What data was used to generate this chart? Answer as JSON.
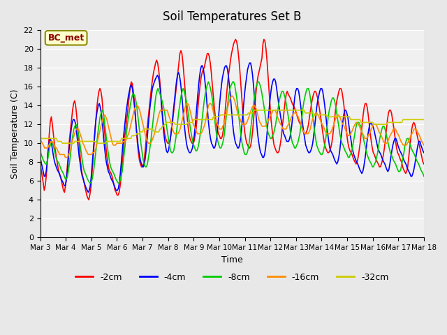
{
  "title": "Soil Temperatures Set B",
  "xlabel": "Time",
  "ylabel": "Soil Temperature (C)",
  "ylim": [
    0,
    22
  ],
  "yticks": [
    0,
    2,
    4,
    6,
    8,
    10,
    12,
    14,
    16,
    18,
    20,
    22
  ],
  "annotation": "BC_met",
  "annotation_color": "#8B0000",
  "annotation_bg": "#FFFFCC",
  "background_color": "#E8E8E8",
  "plot_bg": "#F0F0F0",
  "legend_entries": [
    "-2cm",
    "-4cm",
    "-8cm",
    "-16cm",
    "-32cm"
  ],
  "line_colors": [
    "#FF0000",
    "#0000FF",
    "#00CC00",
    "#FF8C00",
    "#CCCC00"
  ],
  "x_labels": [
    "Mar 3",
    "Mar 4",
    "Mar 5",
    "Mar 6",
    "Mar 7",
    "Mar 8",
    "Mar 9",
    "Mar 10",
    "Mar 11",
    "Mar 12",
    "Mar 13",
    "Mar 14",
    "Mar 15",
    "Mar 16",
    "Mar 17",
    "Mar 18"
  ],
  "data_2cm": [
    7.8,
    7.2,
    6.5,
    5.8,
    5.0,
    5.5,
    6.5,
    8.0,
    9.5,
    11.0,
    12.3,
    12.8,
    12.0,
    11.0,
    10.0,
    9.2,
    8.5,
    7.8,
    7.2,
    6.8,
    6.5,
    6.0,
    5.5,
    5.0,
    4.8,
    5.5,
    6.5,
    7.8,
    9.2,
    10.5,
    11.5,
    12.5,
    13.5,
    14.2,
    14.5,
    14.0,
    13.0,
    11.8,
    10.5,
    9.2,
    8.0,
    7.0,
    6.5,
    6.0,
    5.5,
    5.0,
    4.5,
    4.2,
    4.0,
    4.5,
    5.2,
    6.5,
    8.0,
    9.5,
    11.0,
    12.5,
    13.8,
    14.8,
    15.5,
    15.8,
    15.5,
    14.8,
    13.5,
    12.0,
    10.8,
    9.5,
    8.5,
    7.8,
    7.2,
    7.0,
    6.8,
    6.5,
    6.0,
    5.5,
    5.0,
    4.8,
    4.5,
    4.5,
    4.8,
    5.5,
    6.5,
    7.8,
    9.0,
    10.2,
    11.2,
    12.0,
    13.0,
    14.0,
    15.0,
    16.0,
    16.5,
    16.3,
    15.5,
    14.5,
    13.0,
    11.5,
    10.0,
    9.0,
    8.2,
    7.8,
    7.5,
    7.5,
    7.8,
    8.5,
    9.5,
    10.8,
    12.0,
    13.0,
    14.0,
    15.0,
    16.0,
    16.8,
    17.5,
    18.0,
    18.5,
    18.8,
    18.5,
    17.8,
    16.8,
    15.5,
    14.0,
    12.8,
    11.8,
    11.0,
    10.5,
    10.2,
    10.0,
    10.0,
    10.2,
    10.8,
    11.5,
    12.5,
    13.5,
    14.5,
    15.5,
    16.5,
    17.5,
    18.5,
    19.5,
    19.8,
    19.5,
    18.5,
    17.2,
    15.8,
    14.2,
    13.0,
    11.8,
    11.0,
    10.5,
    10.2,
    10.0,
    10.0,
    10.2,
    10.8,
    11.5,
    12.8,
    14.0,
    15.2,
    16.2,
    17.0,
    17.5,
    17.8,
    18.0,
    18.5,
    19.0,
    19.5,
    19.5,
    19.2,
    18.5,
    17.5,
    16.2,
    15.0,
    13.8,
    12.8,
    12.0,
    11.5,
    11.0,
    10.8,
    10.5,
    10.5,
    10.8,
    11.5,
    12.5,
    13.8,
    15.0,
    16.2,
    17.2,
    18.0,
    18.8,
    19.5,
    20.0,
    20.5,
    20.8,
    21.0,
    20.8,
    20.2,
    19.2,
    18.0,
    16.5,
    15.0,
    13.5,
    12.2,
    11.2,
    10.5,
    10.0,
    9.8,
    9.5,
    9.5,
    9.8,
    10.5,
    11.5,
    12.8,
    14.0,
    15.2,
    16.2,
    17.0,
    17.5,
    18.0,
    18.5,
    19.0,
    20.5,
    21.0,
    20.8,
    20.0,
    18.8,
    17.2,
    15.5,
    14.0,
    12.5,
    11.5,
    10.5,
    9.8,
    9.5,
    9.2,
    9.0,
    9.0,
    9.2,
    9.8,
    10.5,
    11.5,
    12.5,
    13.5,
    14.5,
    15.2,
    15.5,
    15.2,
    15.0,
    14.8,
    14.5,
    14.2,
    14.0,
    13.8,
    13.5,
    13.2,
    12.8,
    12.5,
    12.2,
    12.0,
    11.8,
    11.5,
    11.2,
    11.0,
    11.0,
    11.2,
    11.5,
    12.0,
    12.8,
    13.5,
    14.2,
    14.8,
    15.2,
    15.5,
    15.5,
    15.2,
    14.8,
    14.2,
    13.5,
    12.8,
    12.0,
    11.2,
    10.5,
    9.8,
    9.5,
    9.2,
    9.0,
    9.0,
    9.2,
    9.5,
    10.0,
    10.8,
    11.8,
    12.8,
    13.8,
    14.5,
    15.0,
    15.5,
    15.8,
    15.8,
    15.5,
    14.8,
    14.0,
    12.8,
    11.8,
    10.8,
    10.0,
    9.5,
    9.2,
    9.0,
    8.8,
    8.5,
    8.2,
    8.0,
    7.8,
    8.0,
    8.5,
    9.2,
    10.0,
    11.0,
    12.0,
    13.0,
    13.8,
    14.2,
    14.2,
    13.8,
    13.0,
    12.0,
    11.0,
    10.2,
    9.5,
    9.0,
    8.8,
    8.5,
    8.2,
    8.0,
    7.8,
    7.5,
    7.5,
    7.8,
    8.2,
    8.8,
    9.5,
    10.5,
    11.5,
    12.5,
    13.2,
    13.5,
    13.5,
    13.2,
    12.5,
    11.8,
    11.0,
    10.2,
    9.5,
    9.0,
    8.8,
    8.5,
    8.2,
    8.0,
    7.5,
    7.2,
    7.0,
    6.8,
    7.0,
    7.5,
    8.5,
    9.5,
    10.5,
    11.5,
    12.0,
    12.2,
    12.0,
    11.5,
    11.0,
    10.5,
    10.0,
    9.5,
    9.0,
    8.5,
    8.0,
    7.8
  ],
  "data_4cm": [
    8.5,
    8.0,
    7.5,
    7.0,
    6.5,
    6.5,
    7.0,
    8.0,
    9.2,
    10.2,
    10.5,
    10.2,
    9.5,
    8.8,
    8.2,
    7.8,
    7.5,
    7.2,
    7.0,
    6.8,
    6.5,
    6.2,
    6.0,
    5.8,
    5.5,
    5.5,
    6.0,
    7.0,
    8.2,
    9.5,
    10.5,
    11.5,
    12.2,
    12.5,
    12.5,
    12.2,
    11.5,
    10.5,
    9.5,
    8.5,
    7.8,
    7.0,
    6.5,
    6.2,
    5.8,
    5.5,
    5.2,
    5.0,
    4.8,
    5.0,
    5.5,
    6.5,
    7.8,
    9.2,
    10.5,
    11.8,
    12.8,
    13.5,
    14.0,
    14.2,
    13.8,
    13.2,
    12.2,
    11.0,
    9.8,
    8.8,
    8.0,
    7.5,
    7.0,
    6.8,
    6.5,
    6.2,
    6.0,
    5.8,
    5.5,
    5.2,
    5.0,
    5.0,
    5.2,
    5.8,
    6.8,
    8.0,
    9.2,
    10.5,
    11.5,
    12.5,
    13.5,
    14.2,
    15.0,
    15.5,
    16.0,
    16.2,
    15.8,
    15.0,
    14.0,
    12.8,
    11.5,
    10.5,
    9.5,
    8.8,
    8.2,
    7.8,
    7.5,
    7.5,
    7.8,
    8.5,
    9.5,
    10.8,
    12.0,
    13.2,
    14.2,
    15.0,
    15.8,
    16.2,
    16.5,
    16.8,
    17.0,
    17.2,
    17.0,
    16.5,
    15.5,
    14.2,
    12.8,
    11.5,
    10.5,
    9.8,
    9.2,
    9.0,
    9.2,
    9.8,
    10.5,
    11.5,
    12.5,
    13.5,
    14.5,
    15.5,
    16.5,
    17.2,
    17.5,
    17.2,
    16.5,
    15.5,
    14.2,
    13.0,
    11.8,
    10.8,
    10.0,
    9.5,
    9.2,
    9.0,
    9.0,
    9.2,
    9.5,
    10.2,
    11.0,
    12.2,
    13.5,
    14.8,
    16.0,
    17.0,
    17.8,
    18.2,
    18.2,
    17.8,
    17.0,
    16.0,
    14.8,
    13.5,
    12.2,
    11.2,
    10.5,
    10.0,
    9.8,
    9.5,
    9.5,
    9.8,
    10.5,
    11.5,
    12.8,
    14.0,
    15.2,
    16.2,
    17.0,
    17.5,
    18.0,
    18.2,
    18.2,
    17.8,
    17.0,
    16.0,
    14.8,
    13.5,
    12.2,
    11.2,
    10.5,
    10.0,
    9.8,
    9.5,
    9.5,
    9.8,
    10.5,
    11.5,
    12.8,
    14.0,
    15.2,
    16.2,
    17.0,
    17.8,
    18.2,
    18.5,
    18.5,
    18.0,
    17.2,
    16.0,
    14.8,
    13.5,
    12.2,
    11.0,
    10.2,
    9.5,
    9.0,
    8.8,
    8.5,
    8.5,
    8.8,
    9.5,
    10.5,
    11.8,
    13.0,
    14.2,
    15.2,
    16.0,
    16.5,
    16.8,
    16.8,
    16.5,
    15.8,
    15.0,
    14.2,
    13.5,
    12.8,
    12.2,
    11.5,
    11.0,
    10.8,
    10.5,
    10.2,
    10.2,
    10.2,
    10.5,
    11.0,
    11.8,
    12.8,
    13.8,
    14.8,
    15.5,
    15.8,
    15.8,
    15.5,
    14.8,
    14.0,
    13.0,
    12.0,
    11.2,
    10.5,
    9.8,
    9.5,
    9.2,
    9.0,
    9.0,
    9.2,
    9.5,
    10.0,
    10.8,
    11.8,
    12.8,
    13.8,
    14.5,
    15.0,
    15.5,
    15.8,
    15.8,
    15.5,
    14.8,
    14.0,
    13.0,
    12.0,
    11.0,
    10.2,
    9.5,
    9.2,
    9.0,
    8.8,
    8.5,
    8.2,
    8.0,
    7.8,
    8.0,
    8.5,
    9.2,
    10.2,
    11.2,
    12.2,
    13.0,
    13.5,
    13.5,
    13.2,
    12.8,
    12.0,
    11.2,
    10.5,
    9.8,
    9.2,
    8.8,
    8.5,
    8.2,
    8.0,
    7.8,
    7.5,
    7.2,
    7.0,
    6.8,
    7.0,
    7.5,
    8.2,
    9.0,
    10.0,
    10.8,
    11.5,
    12.0,
    12.2,
    12.0,
    11.8,
    11.5,
    11.0,
    10.5,
    10.0,
    9.5,
    9.2,
    9.0,
    8.8,
    8.5,
    8.2,
    8.0,
    7.8,
    7.5,
    7.2,
    7.0,
    7.2,
    7.8,
    8.5,
    9.2,
    9.8,
    10.2,
    10.5,
    10.5,
    10.2,
    9.8,
    9.5,
    9.2,
    9.0,
    8.8,
    8.5,
    8.2,
    8.0,
    7.8,
    7.5,
    7.2,
    7.0,
    6.8,
    6.5,
    6.5,
    6.8,
    7.2,
    7.8,
    8.5,
    9.2,
    9.8,
    10.2,
    10.2,
    9.8,
    9.5,
    9.2,
    9.0
  ],
  "data_8cm": [
    9.2,
    8.8,
    8.5,
    8.2,
    8.0,
    7.8,
    7.8,
    8.2,
    8.8,
    9.5,
    10.0,
    10.2,
    10.0,
    9.5,
    9.0,
    8.5,
    8.2,
    8.0,
    7.8,
    7.5,
    7.2,
    7.0,
    6.8,
    6.5,
    6.2,
    6.2,
    6.5,
    7.2,
    8.0,
    9.0,
    10.0,
    10.8,
    11.5,
    11.8,
    12.0,
    11.8,
    11.2,
    10.5,
    9.8,
    9.0,
    8.2,
    7.5,
    7.0,
    6.8,
    6.5,
    6.2,
    6.0,
    5.8,
    5.8,
    6.0,
    6.5,
    7.2,
    8.2,
    9.2,
    10.2,
    11.2,
    12.0,
    12.8,
    13.2,
    13.5,
    13.2,
    12.5,
    11.5,
    10.5,
    9.5,
    8.8,
    8.0,
    7.5,
    7.2,
    7.0,
    6.8,
    6.5,
    6.2,
    6.0,
    5.8,
    5.8,
    6.0,
    6.5,
    7.0,
    8.0,
    9.0,
    10.0,
    11.0,
    12.0,
    12.8,
    13.5,
    14.2,
    14.8,
    15.2,
    15.2,
    15.0,
    14.5,
    13.8,
    12.8,
    11.8,
    10.8,
    9.8,
    9.0,
    8.2,
    7.8,
    7.5,
    7.5,
    7.8,
    8.5,
    9.2,
    10.0,
    11.0,
    12.0,
    13.0,
    14.0,
    15.0,
    15.5,
    15.8,
    15.5,
    15.2,
    14.8,
    14.5,
    14.0,
    13.5,
    12.8,
    12.0,
    11.2,
    10.5,
    9.8,
    9.2,
    9.0,
    9.0,
    9.2,
    9.8,
    10.5,
    11.5,
    12.5,
    13.5,
    14.2,
    15.0,
    15.5,
    15.8,
    15.5,
    15.0,
    14.5,
    13.8,
    13.0,
    12.2,
    11.5,
    10.8,
    10.2,
    9.8,
    9.5,
    9.2,
    9.2,
    9.5,
    10.0,
    10.8,
    11.5,
    12.5,
    13.5,
    14.5,
    15.2,
    15.8,
    16.2,
    16.5,
    16.2,
    15.8,
    15.2,
    14.5,
    13.5,
    12.5,
    11.5,
    10.8,
    10.2,
    9.8,
    9.5,
    9.5,
    9.8,
    10.2,
    10.8,
    11.8,
    12.8,
    13.8,
    14.8,
    15.5,
    16.0,
    16.2,
    16.5,
    16.5,
    16.2,
    15.5,
    14.8,
    13.8,
    12.8,
    11.8,
    10.8,
    10.0,
    9.5,
    9.0,
    8.8,
    8.8,
    9.0,
    9.5,
    10.2,
    11.2,
    12.2,
    13.2,
    14.2,
    15.0,
    15.8,
    16.2,
    16.5,
    16.5,
    16.2,
    15.8,
    15.2,
    14.5,
    13.8,
    13.0,
    12.2,
    11.5,
    11.0,
    10.8,
    10.5,
    10.5,
    10.8,
    11.0,
    11.5,
    12.0,
    12.8,
    13.5,
    14.2,
    14.8,
    15.2,
    15.5,
    15.5,
    15.2,
    14.8,
    14.2,
    13.5,
    12.8,
    12.0,
    11.2,
    10.5,
    10.0,
    9.8,
    9.5,
    9.5,
    9.8,
    10.0,
    10.5,
    11.0,
    11.8,
    12.8,
    13.8,
    14.5,
    15.0,
    15.5,
    15.8,
    15.8,
    15.5,
    14.8,
    14.0,
    13.0,
    12.2,
    11.2,
    10.5,
    9.8,
    9.5,
    9.2,
    9.0,
    8.8,
    8.8,
    9.0,
    9.5,
    10.0,
    10.8,
    11.8,
    12.8,
    13.5,
    14.0,
    14.5,
    14.8,
    14.8,
    14.5,
    14.0,
    13.2,
    12.5,
    11.8,
    11.0,
    10.5,
    10.0,
    9.8,
    9.5,
    9.2,
    9.0,
    8.8,
    8.5,
    8.5,
    8.8,
    9.0,
    9.5,
    10.2,
    10.8,
    11.5,
    12.0,
    12.2,
    12.2,
    12.0,
    11.8,
    11.2,
    10.8,
    10.2,
    9.8,
    9.2,
    8.8,
    8.5,
    8.2,
    8.0,
    7.8,
    7.5,
    7.5,
    7.8,
    8.0,
    8.5,
    9.0,
    9.8,
    10.5,
    11.0,
    11.5,
    11.8,
    11.8,
    11.5,
    11.0,
    10.5,
    10.0,
    9.5,
    9.0,
    8.8,
    8.5,
    8.2,
    8.0,
    7.8,
    7.5,
    7.2,
    7.0,
    7.0,
    7.2,
    7.8,
    8.5,
    9.0,
    9.8,
    10.2,
    10.5,
    10.5,
    10.2,
    9.8,
    9.5,
    9.2,
    9.0,
    8.8,
    8.5,
    8.2,
    8.0,
    7.8,
    7.5,
    7.2,
    7.0,
    6.8,
    6.5
  ],
  "data_16cm": [
    10.5,
    10.2,
    10.0,
    9.8,
    9.5,
    9.5,
    9.5,
    9.5,
    9.8,
    10.0,
    10.2,
    10.2,
    10.0,
    9.8,
    9.5,
    9.5,
    9.2,
    9.0,
    8.8,
    8.8,
    8.8,
    8.8,
    8.8,
    8.5,
    8.5,
    8.5,
    8.8,
    9.0,
    9.5,
    10.0,
    10.5,
    10.8,
    11.2,
    11.5,
    11.5,
    11.5,
    11.2,
    10.8,
    10.5,
    10.0,
    9.8,
    9.5,
    9.2,
    9.0,
    8.8,
    8.8,
    8.8,
    8.8,
    9.0,
    9.0,
    9.2,
    9.5,
    10.0,
    10.5,
    11.0,
    11.5,
    12.0,
    12.5,
    12.8,
    13.0,
    12.8,
    12.5,
    12.0,
    11.5,
    11.0,
    10.5,
    10.0,
    9.8,
    9.8,
    9.8,
    10.0,
    10.0,
    10.0,
    10.0,
    10.0,
    10.0,
    10.2,
    10.2,
    10.2,
    10.5,
    10.8,
    11.0,
    11.5,
    12.0,
    12.5,
    13.0,
    13.5,
    13.8,
    14.0,
    14.0,
    13.8,
    13.5,
    13.0,
    12.5,
    12.0,
    11.5,
    11.0,
    10.5,
    10.2,
    10.0,
    10.0,
    10.0,
    10.2,
    10.5,
    10.8,
    11.2,
    11.8,
    12.2,
    12.8,
    13.2,
    13.5,
    13.5,
    13.5,
    13.5,
    13.5,
    13.5,
    13.5,
    13.2,
    12.8,
    12.5,
    12.0,
    11.5,
    11.2,
    11.0,
    11.0,
    11.0,
    11.0,
    11.2,
    11.5,
    12.0,
    12.5,
    13.0,
    13.5,
    14.0,
    14.2,
    14.2,
    14.0,
    13.5,
    13.0,
    12.5,
    12.0,
    11.8,
    11.5,
    11.2,
    11.0,
    11.0,
    11.0,
    11.0,
    11.2,
    11.5,
    11.8,
    12.2,
    12.8,
    13.5,
    14.0,
    14.2,
    14.2,
    14.0,
    13.5,
    13.0,
    12.5,
    12.2,
    12.0,
    11.8,
    11.5,
    11.5,
    11.5,
    11.8,
    12.0,
    12.5,
    13.0,
    13.5,
    14.0,
    14.5,
    14.8,
    15.0,
    15.0,
    14.8,
    14.5,
    14.0,
    13.5,
    13.0,
    12.8,
    12.5,
    12.2,
    12.0,
    12.0,
    12.0,
    12.0,
    12.2,
    12.5,
    12.8,
    13.2,
    13.5,
    13.8,
    14.0,
    14.0,
    13.8,
    13.5,
    13.0,
    12.5,
    12.2,
    12.0,
    11.8,
    11.8,
    11.8,
    11.8,
    12.0,
    12.2,
    12.5,
    12.8,
    13.0,
    13.2,
    13.5,
    13.5,
    13.5,
    13.2,
    12.8,
    12.5,
    12.2,
    12.0,
    11.8,
    11.5,
    11.5,
    11.5,
    11.5,
    11.8,
    12.0,
    12.2,
    12.5,
    12.8,
    13.0,
    13.2,
    13.2,
    13.2,
    13.0,
    12.8,
    12.5,
    12.2,
    11.8,
    11.5,
    11.2,
    11.0,
    11.0,
    11.0,
    11.0,
    11.2,
    11.5,
    12.0,
    12.5,
    12.8,
    13.0,
    13.2,
    13.2,
    13.0,
    12.8,
    12.5,
    12.2,
    12.0,
    11.8,
    11.5,
    11.2,
    11.0,
    11.0,
    11.0,
    11.0,
    11.2,
    11.5,
    11.8,
    12.2,
    12.5,
    12.8,
    13.0,
    13.0,
    12.8,
    12.5,
    12.2,
    12.0,
    11.8,
    11.5,
    11.2,
    11.0,
    10.8,
    10.8,
    11.0,
    11.2,
    11.5,
    11.8,
    12.0,
    12.2,
    12.2,
    12.0,
    11.8,
    11.5,
    11.2,
    11.0,
    10.8,
    10.5,
    10.5,
    10.5,
    10.8,
    11.0,
    11.2,
    11.5,
    11.8,
    12.0,
    12.0,
    12.0,
    11.8,
    11.5,
    11.2,
    11.0,
    10.8,
    10.5,
    10.2,
    10.0,
    10.0,
    10.0,
    10.2,
    10.5,
    10.8,
    11.0,
    11.2,
    11.5,
    11.5,
    11.5,
    11.2,
    11.0,
    10.8,
    10.5,
    10.2,
    10.0,
    9.8,
    9.8,
    9.8,
    9.8,
    10.0,
    10.2,
    10.5,
    10.8,
    11.0,
    11.2,
    11.5,
    11.5,
    11.5,
    11.2,
    11.0,
    10.8,
    10.5,
    10.2,
    10.0,
    9.8
  ],
  "data_32cm": [
    10.5,
    10.5,
    10.5,
    10.5,
    10.5,
    10.5,
    10.5,
    10.5,
    10.5,
    10.5,
    10.5,
    10.5,
    10.5,
    10.5,
    10.5,
    10.2,
    10.2,
    10.2,
    10.2,
    10.0,
    10.0,
    10.0,
    10.0,
    10.0,
    10.0,
    10.0,
    10.0,
    10.0,
    10.0,
    10.0,
    10.2,
    10.2,
    10.2,
    10.2,
    10.2,
    10.2,
    10.2,
    10.2,
    10.2,
    10.2,
    10.2,
    10.2,
    10.2,
    10.2,
    10.2,
    10.2,
    10.2,
    10.2,
    10.0,
    10.0,
    10.0,
    10.0,
    10.0,
    10.0,
    10.0,
    10.0,
    10.0,
    10.2,
    10.2,
    10.2,
    10.2,
    10.2,
    10.2,
    10.2,
    10.2,
    10.2,
    10.2,
    10.2,
    10.2,
    10.2,
    10.5,
    10.5,
    10.5,
    10.5,
    10.5,
    10.5,
    10.5,
    10.5,
    10.5,
    10.8,
    10.8,
    10.8,
    10.8,
    11.0,
    11.0,
    11.0,
    11.2,
    11.2,
    11.2,
    11.5,
    11.5,
    11.5,
    11.5,
    11.5,
    11.5,
    11.5,
    11.5,
    11.5,
    11.2,
    11.2,
    11.2,
    11.2,
    11.2,
    11.5,
    11.5,
    11.8,
    11.8,
    12.0,
    12.0,
    12.2,
    12.2,
    12.2,
    12.2,
    12.2,
    12.2,
    12.2,
    12.0,
    12.0,
    12.0,
    12.0,
    12.0,
    12.0,
    12.0,
    12.0,
    12.0,
    12.0,
    12.0,
    12.2,
    12.2,
    12.2,
    12.2,
    12.2,
    12.5,
    12.5,
    12.5,
    12.5,
    12.5,
    12.5,
    12.5,
    12.5,
    12.5,
    12.5,
    12.5,
    12.5,
    12.5,
    12.5,
    12.5,
    12.5,
    12.5,
    12.8,
    12.8,
    12.8,
    12.8,
    12.8,
    12.8,
    13.0,
    13.0,
    13.0,
    13.0,
    13.0,
    13.0,
    13.0,
    13.0,
    13.0,
    13.0,
    13.0,
    13.0,
    13.0,
    13.0,
    13.0,
    13.0,
    13.0,
    13.0,
    13.0,
    13.0,
    13.0,
    13.0,
    13.0,
    13.0,
    13.2,
    13.2,
    13.2,
    13.2,
    13.2,
    13.5,
    13.5,
    13.5,
    13.5,
    13.5,
    13.5,
    13.5,
    13.5,
    13.5,
    13.5,
    13.5,
    13.5,
    13.5,
    13.5,
    13.5,
    13.5,
    13.5,
    13.5,
    13.5,
    13.5,
    13.5,
    13.5,
    13.5,
    13.5,
    13.5,
    13.5,
    13.5,
    13.5,
    13.5,
    13.5,
    13.5,
    13.5,
    13.5,
    13.5,
    13.5,
    13.5,
    13.5,
    13.5,
    13.5,
    13.5,
    13.5,
    13.5,
    13.5,
    13.5,
    13.2,
    13.2,
    13.2,
    13.2,
    13.2,
    13.2,
    13.2,
    13.2,
    13.0,
    13.0,
    13.0,
    13.0,
    13.0,
    13.0,
    13.0,
    13.0,
    13.0,
    13.0,
    13.0,
    12.8,
    12.8,
    12.8,
    12.8,
    12.8,
    12.8,
    12.8,
    12.8,
    12.8,
    12.8,
    12.8,
    12.8,
    12.8,
    12.8,
    12.8,
    12.8,
    12.8,
    12.8,
    12.8,
    12.8,
    12.5,
    12.5,
    12.5,
    12.5,
    12.5,
    12.5,
    12.5,
    12.5,
    12.5,
    12.2,
    12.2,
    12.2,
    12.2,
    12.2,
    12.2,
    12.2,
    12.2,
    12.2,
    12.2,
    12.2,
    12.0,
    12.0,
    12.0,
    12.0,
    12.0,
    12.0,
    12.0,
    12.0,
    12.0,
    12.0,
    12.0,
    12.0,
    12.2,
    12.2,
    12.2,
    12.2,
    12.2,
    12.2,
    12.2,
    12.2,
    12.2,
    12.2,
    12.2,
    12.2,
    12.2,
    12.5,
    12.5,
    12.5,
    12.5,
    12.5,
    12.5,
    12.5,
    12.5,
    12.5,
    12.5,
    12.5,
    12.5,
    12.5,
    12.5,
    12.5,
    12.5,
    12.5,
    12.5,
    12.5
  ]
}
